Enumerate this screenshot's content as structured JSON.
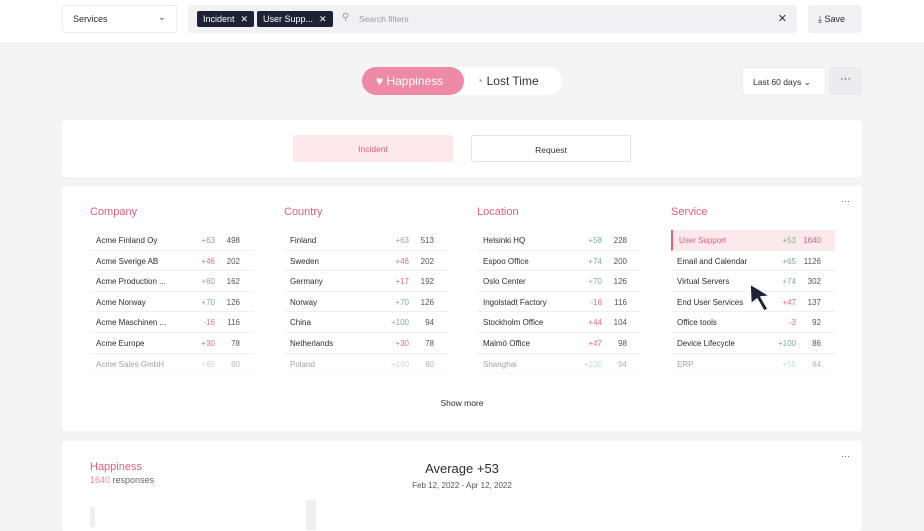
{
  "topbar": {
    "services_select": "Services",
    "chips": [
      "Incident",
      "User Supp..."
    ],
    "search_placeholder": "Search filters",
    "save_label": "Save"
  },
  "toggle": {
    "happiness": "Happiness",
    "lost_time": "Lost Time",
    "active": "Happiness"
  },
  "date_range": "Last 60 days",
  "more_label": "···",
  "tabs": {
    "incident": "Incident",
    "request": "Request",
    "active": "Incident"
  },
  "columns": [
    {
      "title": "Company",
      "rows": [
        [
          "Acme Finland Oy",
          "+63",
          "498"
        ],
        [
          "Acme Sverige AB",
          "+46",
          "202"
        ],
        [
          "Acme Production ...",
          "+60",
          "162"
        ],
        [
          "Acme Norway",
          "+70",
          "126"
        ],
        [
          "Acme Maschinen ...",
          "-16",
          "116"
        ],
        [
          "Acme Europe",
          "+30",
          "78"
        ],
        [
          "Acme Sales GmbH",
          "+69",
          "60"
        ]
      ]
    },
    {
      "title": "Country",
      "rows": [
        [
          "Finland",
          "+63",
          "513"
        ],
        [
          "Sweden",
          "+46",
          "202"
        ],
        [
          "Germany",
          "+17",
          "192"
        ],
        [
          "Norway",
          "+70",
          "126"
        ],
        [
          "China",
          "+100",
          "94"
        ],
        [
          "Netherlands",
          "+30",
          "78"
        ],
        [
          "Poland",
          "+100",
          "60"
        ]
      ]
    },
    {
      "title": "Location",
      "rows": [
        [
          "Helsinki HQ",
          "+58",
          "228"
        ],
        [
          "Espoo Office",
          "+74",
          "200"
        ],
        [
          "Oslo Center",
          "+70",
          "126"
        ],
        [
          "Ingolstadt Factory",
          "-16",
          "116"
        ],
        [
          "Stockholm Office",
          "+44",
          "104"
        ],
        [
          "Malmö Office",
          "+47",
          "98"
        ],
        [
          "Shanghai",
          "+100",
          "94"
        ]
      ]
    },
    {
      "title": "Service",
      "selected": "User Support",
      "rows": [
        [
          "User Support",
          "+53",
          "1640"
        ],
        [
          "Email and Calendar",
          "+65",
          "1126"
        ],
        [
          "Virtual Servers",
          "+74",
          "302"
        ],
        [
          "End User Services",
          "+47",
          "137"
        ],
        [
          "Office tools",
          "-3",
          "92"
        ],
        [
          "Device Lifecycle",
          "+100",
          "86"
        ],
        [
          "ERP",
          "+55",
          "84"
        ]
      ]
    }
  ],
  "score_colors": {
    "positive_high": "#7fb08a",
    "low_or_negative": "#e0707f"
  },
  "show_more": "Show more",
  "happiness_card": {
    "title": "Happiness",
    "responses_count": "1640",
    "responses_label": "responses",
    "average": "Average +53",
    "date_span": "Feb 12, 2022 - Apr 12, 2022"
  }
}
